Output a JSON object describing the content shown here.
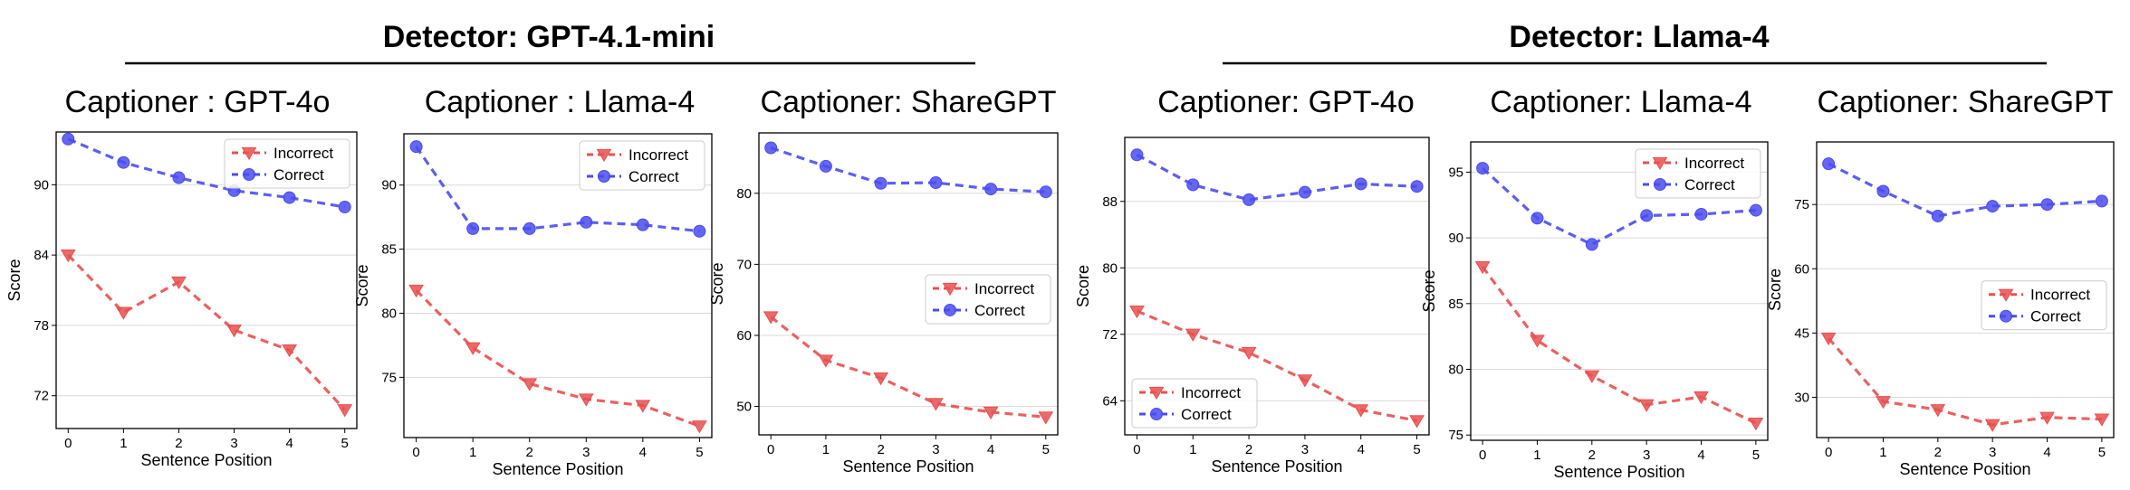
{
  "group_titles": [
    "Detector: GPT-4.1-mini",
    "Detector: Llama-4"
  ],
  "colors": {
    "incorrect": "#e8504f",
    "correct": "#4a4cf0",
    "grid": "#d9d9d9",
    "frame": "#000000"
  },
  "chart_data": [
    {
      "type": "line",
      "group": "Detector: GPT-4.1-mini",
      "title": "Captioner : GPT-4o",
      "xlabel": "Sentence Position",
      "ylabel": "Score",
      "x": [
        0,
        1,
        2,
        3,
        4,
        5
      ],
      "ylim": [
        69.2,
        94.5
      ],
      "yticks": [
        72,
        78,
        84,
        90
      ],
      "legend": "top-right",
      "series": [
        {
          "name": "Incorrect",
          "marker": "triangle-down",
          "values": [
            84.0,
            79.1,
            81.7,
            77.6,
            75.9,
            70.8
          ]
        },
        {
          "name": "Correct",
          "marker": "circle",
          "values": [
            93.9,
            91.9,
            90.6,
            89.5,
            88.9,
            88.1
          ]
        }
      ]
    },
    {
      "type": "line",
      "group": "Detector: GPT-4.1-mini",
      "title": "Captioner : Llama-4",
      "xlabel": "Sentence Position",
      "ylabel": "Score",
      "x": [
        0,
        1,
        2,
        3,
        4,
        5
      ],
      "ylim": [
        70.3,
        94.0
      ],
      "yticks": [
        75,
        80,
        85,
        90
      ],
      "legend": "top-right",
      "series": [
        {
          "name": "Incorrect",
          "marker": "triangle-down",
          "values": [
            81.8,
            77.3,
            74.5,
            73.3,
            72.8,
            71.2
          ]
        },
        {
          "name": "Correct",
          "marker": "circle",
          "values": [
            93.0,
            86.6,
            86.6,
            87.1,
            86.9,
            86.4
          ]
        }
      ]
    },
    {
      "type": "line",
      "group": "Detector: GPT-4.1-mini",
      "title": "Captioner: ShareGPT",
      "xlabel": "Sentence Position",
      "ylabel": "Score",
      "x": [
        0,
        1,
        2,
        3,
        4,
        5
      ],
      "ylim": [
        46.0,
        88.5
      ],
      "yticks": [
        50,
        60,
        70,
        80
      ],
      "legend": "center-right",
      "series": [
        {
          "name": "Incorrect",
          "marker": "triangle-down",
          "values": [
            62.6,
            56.5,
            54.0,
            50.4,
            49.2,
            48.5
          ]
        },
        {
          "name": "Correct",
          "marker": "circle",
          "values": [
            86.4,
            83.8,
            81.4,
            81.5,
            80.6,
            80.2
          ]
        }
      ]
    },
    {
      "type": "line",
      "group": "Detector: Llama-4",
      "title": "Captioner: GPT-4o",
      "xlabel": "Sentence Position",
      "ylabel": "Score",
      "x": [
        0,
        1,
        2,
        3,
        4,
        5
      ],
      "ylim": [
        59.9,
        95.7
      ],
      "yticks": [
        64,
        72,
        80,
        88
      ],
      "legend": "bottom-left",
      "series": [
        {
          "name": "Incorrect",
          "marker": "triangle-down",
          "values": [
            74.8,
            72.0,
            69.8,
            66.5,
            62.9,
            61.6
          ]
        },
        {
          "name": "Correct",
          "marker": "circle",
          "values": [
            93.6,
            90.0,
            88.2,
            89.1,
            90.1,
            89.8
          ]
        }
      ]
    },
    {
      "type": "line",
      "group": "Detector: Llama-4",
      "title": "Captioner: Llama-4",
      "xlabel": "Sentence Position",
      "ylabel": "Score",
      "x": [
        0,
        1,
        2,
        3,
        4,
        5
      ],
      "ylim": [
        74.6,
        97.3
      ],
      "yticks": [
        75,
        80,
        85,
        90,
        95
      ],
      "legend": "top-right",
      "series": [
        {
          "name": "Incorrect",
          "marker": "triangle-down",
          "values": [
            87.8,
            82.2,
            79.5,
            77.3,
            77.9,
            75.9
          ]
        },
        {
          "name": "Correct",
          "marker": "circle",
          "values": [
            95.3,
            91.5,
            89.5,
            91.7,
            91.8,
            92.1
          ]
        }
      ]
    },
    {
      "type": "line",
      "group": "Detector: Llama-4",
      "title": "Captioner: ShareGPT",
      "xlabel": "Sentence Position",
      "ylabel": "Score",
      "x": [
        0,
        1,
        2,
        3,
        4,
        5
      ],
      "ylim": [
        20.6,
        89.6
      ],
      "yticks": [
        30,
        45,
        60,
        75
      ],
      "legend": "center-right",
      "series": [
        {
          "name": "Incorrect",
          "marker": "triangle-down",
          "values": [
            43.8,
            29.0,
            27.1,
            23.6,
            25.3,
            24.9
          ]
        },
        {
          "name": "Correct",
          "marker": "circle",
          "values": [
            84.5,
            78.1,
            72.3,
            74.6,
            75.0,
            75.8
          ]
        }
      ]
    }
  ]
}
